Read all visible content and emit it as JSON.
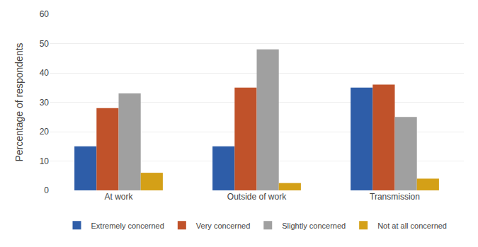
{
  "chart_data": {
    "type": "bar",
    "categories": [
      "At work",
      "Outside of work",
      "Transmission"
    ],
    "series": [
      {
        "name": "Extremely concerned",
        "color": "#2E5DA8",
        "values": [
          15,
          15,
          35
        ]
      },
      {
        "name": "Very concerned",
        "color": "#C0522A",
        "values": [
          28,
          35,
          36
        ]
      },
      {
        "name": "Slightly concerned",
        "color": "#A0A0A0",
        "values": [
          33,
          48,
          25
        ]
      },
      {
        "name": "Not at all concerned",
        "color": "#D4A017",
        "values": [
          6,
          2.5,
          4
        ]
      }
    ],
    "ylabel": "Percentage of respondents",
    "ylim": [
      0,
      60
    ],
    "yticks": [
      0,
      10,
      20,
      30,
      40,
      50,
      60
    ],
    "grid": true,
    "legend": "bottom"
  }
}
